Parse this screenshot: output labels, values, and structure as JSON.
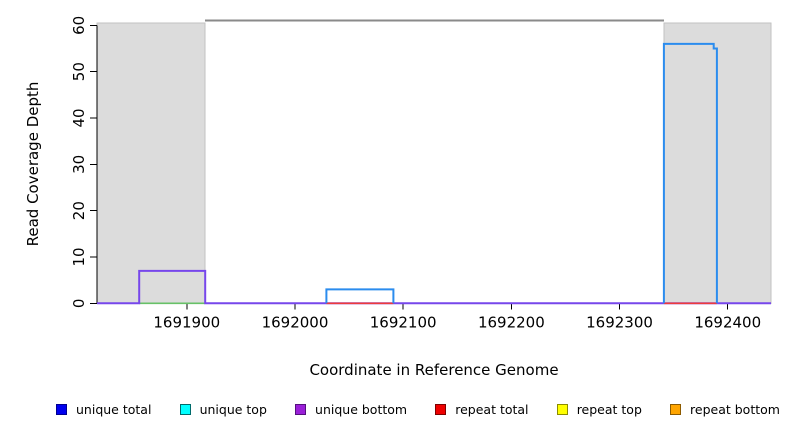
{
  "chart_data": {
    "type": "line",
    "subtype": "step-coverage-plot",
    "title": "",
    "xlabel": "Coordinate in Reference Genome",
    "ylabel": "Read Coverage Depth",
    "xlim": [
      1691817,
      1692440
    ],
    "ylim": [
      0,
      61
    ],
    "grid": false,
    "x_ticks": [
      "1691900",
      "1692000",
      "1692100",
      "1692200",
      "1692300",
      "1692400"
    ],
    "x_tick_values": [
      1691900,
      1692000,
      1692100,
      1692200,
      1692300,
      1692400
    ],
    "y_ticks": [
      "0",
      "10",
      "20",
      "30",
      "40",
      "50",
      "60"
    ],
    "y_tick_values": [
      0,
      10,
      20,
      30,
      40,
      50,
      60
    ],
    "shaded_regions": [
      {
        "name": "left-gray-region",
        "x0": 1691817,
        "x1": 1691917,
        "y0": 0,
        "y1": 60.5,
        "fill": "#dcdcdc",
        "stroke": "#c2c2c2"
      },
      {
        "name": "right-gray-region",
        "x0": 1692341,
        "x1": 1692440,
        "y0": 0,
        "y1": 60.5,
        "fill": "#dcdcdc",
        "stroke": "#c2c2c2"
      }
    ],
    "max_line": {
      "y": 61,
      "x0": 1691917,
      "x1": 1692341,
      "color": "#8a8a8a",
      "width": 2
    },
    "series": [
      {
        "name": "green-baseline-segment",
        "color": "#67c167",
        "width": 1.6,
        "lines": [
          [
            [
              1691856,
              0
            ],
            [
              1691917,
              0
            ]
          ]
        ]
      },
      {
        "name": "unique-bottom-coverage",
        "color": "#7747eb",
        "width": 2,
        "lines": [
          [
            [
              1691817,
              0
            ],
            [
              1691856,
              0
            ],
            [
              1691856,
              7
            ],
            [
              1691917,
              7
            ],
            [
              1691917,
              0
            ],
            [
              1692440,
              0
            ]
          ]
        ]
      },
      {
        "name": "repeat-total-baseline",
        "color": "#ee3b3b",
        "width": 1.6,
        "lines": [
          [
            [
              1692029,
              0
            ],
            [
              1692091,
              0
            ]
          ],
          [
            [
              1692341,
              0
            ],
            [
              1692390,
              0
            ]
          ]
        ]
      },
      {
        "name": "unique-total-coverage",
        "color": "#2b8cee",
        "width": 2,
        "lines": [
          [
            [
              1692029,
              0
            ],
            [
              1692029,
              3
            ],
            [
              1692091,
              3
            ],
            [
              1692091,
              0
            ]
          ],
          [
            [
              1692341,
              0
            ],
            [
              1692341,
              56
            ],
            [
              1692387,
              56
            ],
            [
              1692387,
              55
            ],
            [
              1692390,
              55
            ],
            [
              1692390,
              0
            ]
          ]
        ]
      }
    ],
    "legend_position": "bottom",
    "legend": [
      {
        "label": "unique total",
        "fill": "#0000ee",
        "stroke": "#000090"
      },
      {
        "label": "unique top",
        "fill": "#00ffff",
        "stroke": "#006a6a"
      },
      {
        "label": "unique bottom",
        "fill": "#9a1fd8",
        "stroke": "#55107e"
      },
      {
        "label": "repeat total",
        "fill": "#ee0000",
        "stroke": "#7e0000"
      },
      {
        "label": "repeat top",
        "fill": "#ffff00",
        "stroke": "#8c8c00"
      },
      {
        "label": "repeat bottom",
        "fill": "#ffa500",
        "stroke": "#8c5a00"
      }
    ]
  }
}
